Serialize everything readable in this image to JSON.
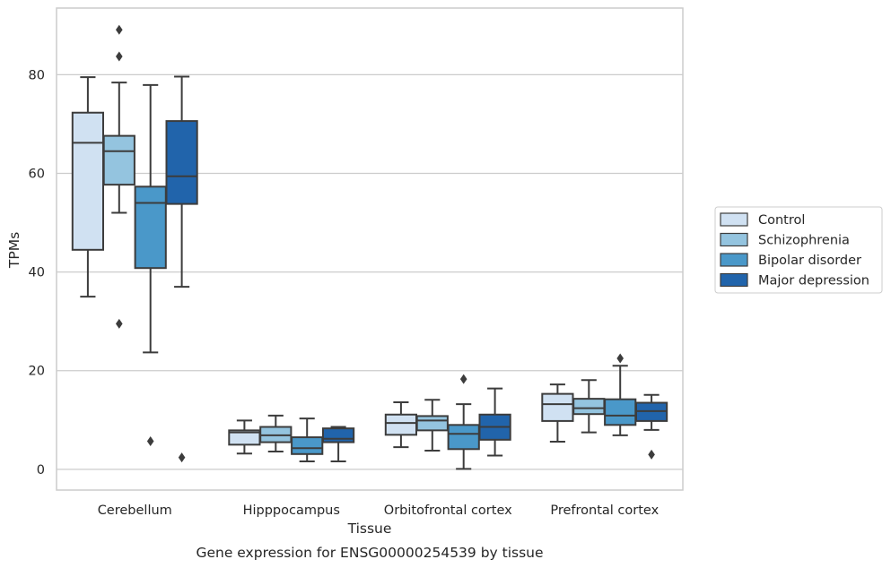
{
  "caption": "Gene expression for ENSG00000254539 by tissue",
  "chart_data": {
    "type": "box",
    "xlabel": "Tissue",
    "ylabel": "TPMs",
    "ylim": [
      -4.2,
      93.5
    ],
    "yticks": [
      0,
      20,
      40,
      60,
      80
    ],
    "grid": "horizontal",
    "legend_position": "right",
    "categories": [
      "Cerebellum",
      "Hipppocampus",
      "Orbitofrontal cortex",
      "Prefrontal cortex"
    ],
    "series": [
      {
        "name": "Control",
        "color": "#d0e1f2",
        "boxes": [
          {
            "whislo": 35,
            "q1": 44.5,
            "med": 66.2,
            "q3": 72.3,
            "whishi": 79.5,
            "fliers": []
          },
          {
            "whislo": 3.2,
            "q1": 5,
            "med": 7.5,
            "q3": 7.9,
            "whishi": 9.9,
            "fliers": []
          },
          {
            "whislo": 4.5,
            "q1": 7,
            "med": 9.4,
            "q3": 11.1,
            "whishi": 13.6,
            "fliers": []
          },
          {
            "whislo": 5.6,
            "q1": 9.8,
            "med": 13.2,
            "q3": 15.3,
            "whishi": 17.2,
            "fliers": []
          }
        ]
      },
      {
        "name": "Schizophrenia",
        "color": "#94c4df",
        "boxes": [
          {
            "whislo": 52,
            "q1": 57.7,
            "med": 64.5,
            "q3": 67.6,
            "whishi": 78.4,
            "fliers": [
              29.5,
              83.7,
              89.1
            ]
          },
          {
            "whislo": 3.6,
            "q1": 5.5,
            "med": 6.9,
            "q3": 8.6,
            "whishi": 10.9,
            "fliers": []
          },
          {
            "whislo": 3.8,
            "q1": 7.9,
            "med": 9.9,
            "q3": 10.8,
            "whishi": 14.1,
            "fliers": []
          },
          {
            "whislo": 7.5,
            "q1": 11.2,
            "med": 12.4,
            "q3": 14.3,
            "whishi": 18.1,
            "fliers": []
          }
        ]
      },
      {
        "name": "Bipolar disorder",
        "color": "#4a98c9",
        "boxes": [
          {
            "whislo": 23.7,
            "q1": 40.8,
            "med": 54,
            "q3": 57.3,
            "whishi": 77.9,
            "fliers": [
              5.7
            ]
          },
          {
            "whislo": 1.6,
            "q1": 3.1,
            "med": 4.3,
            "q3": 6.5,
            "whishi": 10.3,
            "fliers": []
          },
          {
            "whislo": 0.1,
            "q1": 4.1,
            "med": 7.2,
            "q3": 9,
            "whishi": 13.2,
            "fliers": [
              18.3
            ]
          },
          {
            "whislo": 6.9,
            "q1": 9,
            "med": 10.9,
            "q3": 14.2,
            "whishi": 21,
            "fliers": [
              22.5
            ]
          }
        ]
      },
      {
        "name": "Major depression",
        "color": "#2164ab",
        "boxes": [
          {
            "whislo": 37,
            "q1": 53.8,
            "med": 59.4,
            "q3": 70.6,
            "whishi": 79.6,
            "fliers": [
              2.4
            ]
          },
          {
            "whislo": 1.6,
            "q1": 5.5,
            "med": 6.2,
            "q3": 8.3,
            "whishi": 8.6,
            "fliers": []
          },
          {
            "whislo": 2.8,
            "q1": 6,
            "med": 8.6,
            "q3": 11.1,
            "whishi": 16.4,
            "fliers": []
          },
          {
            "whislo": 8,
            "q1": 9.8,
            "med": 11.8,
            "q3": 13.5,
            "whishi": 15.1,
            "fliers": [
              3
            ]
          }
        ]
      }
    ]
  }
}
